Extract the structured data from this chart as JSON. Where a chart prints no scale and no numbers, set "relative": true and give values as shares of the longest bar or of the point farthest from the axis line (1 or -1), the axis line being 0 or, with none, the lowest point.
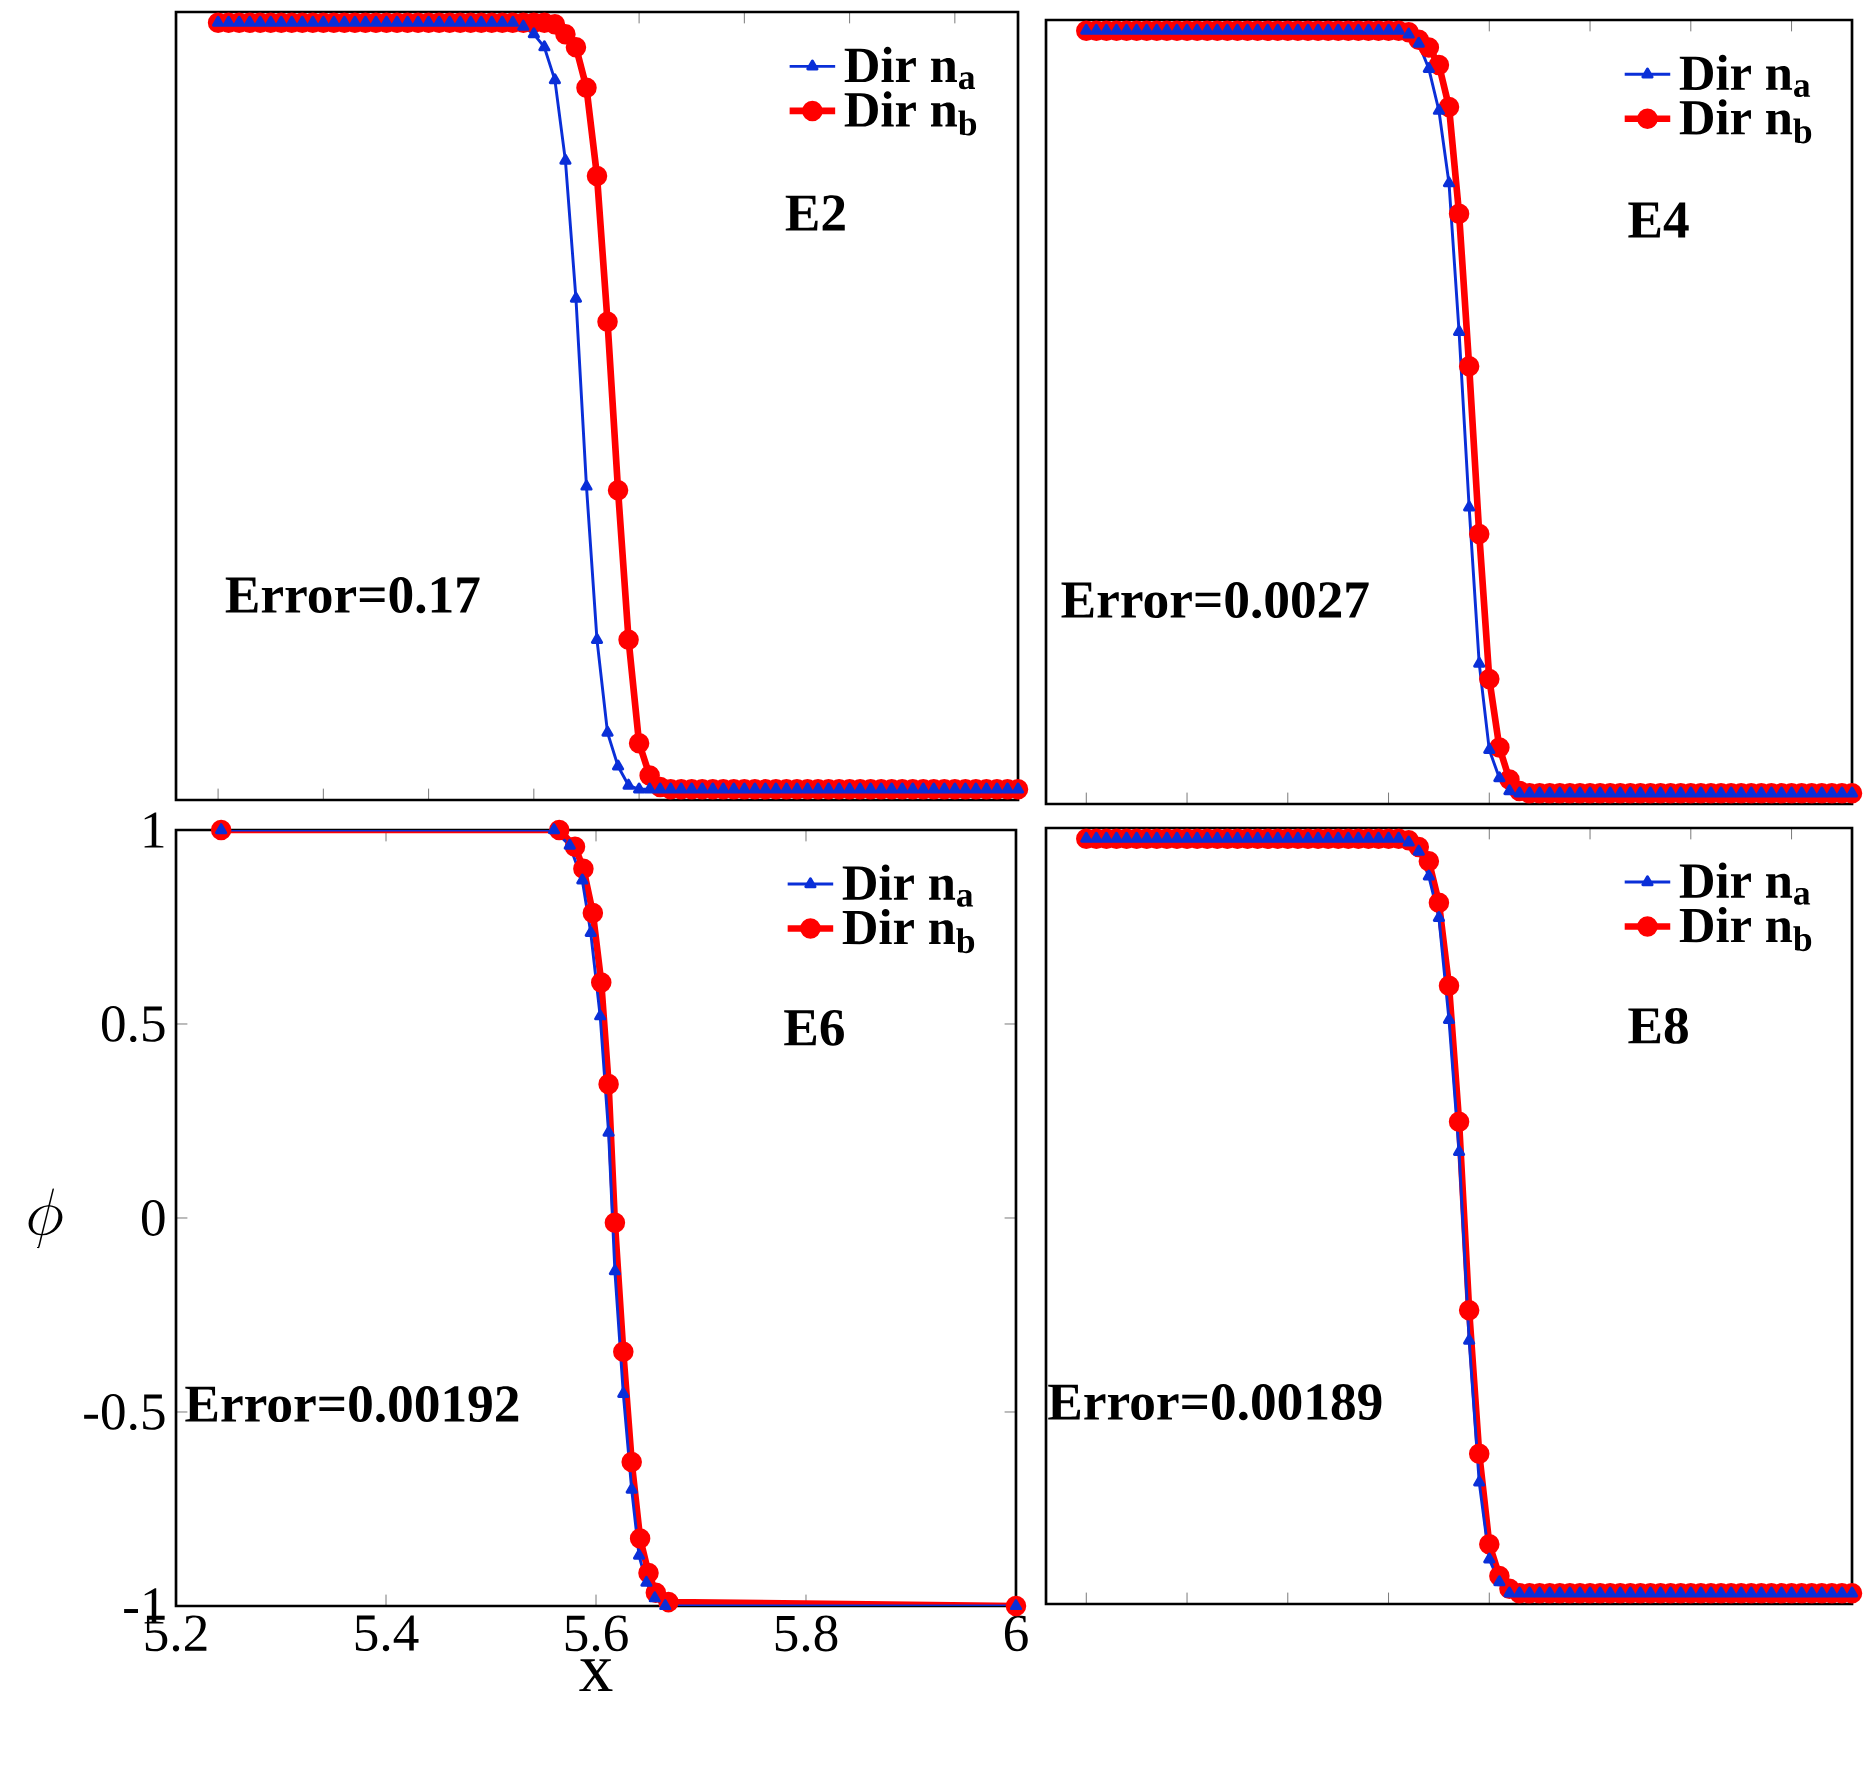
{
  "chart_data": [
    {
      "type": "line",
      "annotations": [
        "E2",
        "Error=0.17"
      ],
      "relative": true,
      "legend": "top right",
      "categories": [
        null,
        null,
        null,
        null,
        null,
        null,
        null,
        null,
        null,
        null,
        null,
        null,
        null,
        null,
        null,
        null,
        null,
        null,
        null,
        null,
        null,
        null,
        null,
        null,
        null,
        null,
        null,
        null,
        null,
        null,
        null,
        null,
        null,
        null,
        null,
        null,
        null,
        null,
        null,
        null,
        null,
        null,
        null,
        null,
        null,
        null,
        null,
        null,
        null,
        null,
        null,
        null,
        null,
        null,
        null,
        null,
        null,
        null,
        null,
        null,
        null,
        null,
        null,
        null,
        null,
        null,
        null,
        null,
        null,
        null,
        null,
        null,
        null,
        null,
        null,
        null,
        null
      ],
      "series": [
        {
          "name": "Dir **n**$_{a}$",
          "color": "#0a2fd8",
          "marker": "triangle",
          "values": [
            1,
            1,
            1,
            1,
            1,
            1,
            1,
            1,
            1,
            1,
            1,
            1,
            1,
            1,
            1,
            1,
            1,
            1,
            1,
            1,
            1,
            1,
            1,
            1,
            1,
            1,
            1,
            1,
            1,
            0.995,
            0.985,
            0.968,
            0.925,
            0.82,
            0.64,
            0.395,
            0.195,
            0.074,
            0.03,
            0.005,
            0,
            0,
            0,
            0,
            0,
            0,
            0,
            0,
            0,
            0,
            0,
            0,
            0,
            0,
            0,
            0,
            0,
            0,
            0,
            0,
            0,
            0,
            0,
            0,
            0,
            0,
            0,
            0,
            0,
            0,
            0,
            0,
            0,
            0,
            0,
            0,
            0
          ]
        },
        {
          "name": "Dir **n**$_{b}$",
          "color": "#ff0000",
          "marker": "circle",
          "values": [
            1,
            1,
            1,
            1,
            1,
            1,
            1,
            1,
            1,
            1,
            1,
            1,
            1,
            1,
            1,
            1,
            1,
            1,
            1,
            1,
            1,
            1,
            1,
            1,
            1,
            1,
            1,
            1,
            1,
            1,
            1,
            1,
            0.998,
            0.985,
            0.968,
            0.915,
            0.8,
            0.61,
            0.39,
            0.195,
            0.06,
            0.018,
            0.003,
            0,
            0,
            0,
            0,
            0,
            0,
            0,
            0,
            0,
            0,
            0,
            0,
            0,
            0,
            0,
            0,
            0,
            0,
            0,
            0,
            0,
            0,
            0,
            0,
            0,
            0,
            0,
            0,
            0,
            0,
            0,
            0,
            0,
            0
          ]
        }
      ]
    },
    {
      "type": "line",
      "annotations": [
        "E4",
        "Error=0.0027"
      ],
      "relative": true,
      "legend": "top right",
      "categories": [
        null,
        null,
        null,
        null,
        null,
        null,
        null,
        null,
        null,
        null,
        null,
        null,
        null,
        null,
        null,
        null,
        null,
        null,
        null,
        null,
        null,
        null,
        null,
        null,
        null,
        null,
        null,
        null,
        null,
        null,
        null,
        null,
        null,
        null,
        null,
        null,
        null,
        null,
        null,
        null,
        null,
        null,
        null,
        null,
        null,
        null,
        null,
        null,
        null,
        null,
        null,
        null,
        null,
        null,
        null,
        null,
        null,
        null,
        null,
        null,
        null,
        null,
        null,
        null,
        null,
        null,
        null,
        null,
        null,
        null,
        null,
        null,
        null,
        null,
        null,
        null,
        null
      ],
      "series": [
        {
          "name": "Dir **n**$_{a}$",
          "color": "#0a2fd8",
          "marker": "triangle",
          "values": [
            1,
            1,
            1,
            1,
            1,
            1,
            1,
            1,
            1,
            1,
            1,
            1,
            1,
            1,
            1,
            1,
            1,
            1,
            1,
            1,
            1,
            1,
            1,
            1,
            1,
            1,
            1,
            1,
            1,
            1,
            1,
            1,
            0.995,
            0.983,
            0.95,
            0.895,
            0.8,
            0.605,
            0.375,
            0.17,
            0.057,
            0.02,
            0.003,
            0,
            0,
            0,
            0,
            0,
            0,
            0,
            0,
            0,
            0,
            0,
            0,
            0,
            0,
            0,
            0,
            0,
            0,
            0,
            0,
            0,
            0,
            0,
            0,
            0,
            0,
            0,
            0,
            0,
            0,
            0,
            0,
            0,
            0
          ]
        },
        {
          "name": "Dir **n**$_{b}$",
          "color": "#ff0000",
          "marker": "circle",
          "values": [
            1,
            1,
            1,
            1,
            1,
            1,
            1,
            1,
            1,
            1,
            1,
            1,
            1,
            1,
            1,
            1,
            1,
            1,
            1,
            1,
            1,
            1,
            1,
            1,
            1,
            1,
            1,
            1,
            1,
            1,
            1,
            1,
            0.998,
            0.988,
            0.978,
            0.955,
            0.9,
            0.76,
            0.56,
            0.34,
            0.15,
            0.06,
            0.018,
            0.003,
            0,
            0,
            0,
            0,
            0,
            0,
            0,
            0,
            0,
            0,
            0,
            0,
            0,
            0,
            0,
            0,
            0,
            0,
            0,
            0,
            0,
            0,
            0,
            0,
            0,
            0,
            0,
            0,
            0,
            0,
            0,
            0,
            0
          ]
        }
      ]
    },
    {
      "type": "line",
      "annotations": [
        "E6",
        "Error=0.00192"
      ],
      "xlabel": "x",
      "ylabel": "\\phi",
      "xlim": [
        5.2,
        6.0
      ],
      "ylim": [
        -1.0,
        1.0
      ],
      "xticks": [
        5.2,
        5.4,
        5.6,
        5.8,
        6
      ],
      "yticks": [
        -1,
        -0.5,
        0,
        0.5,
        1
      ],
      "legend": "top right",
      "series": [
        {
          "name": "Dir **n**$_{a}$",
          "color": "#0a2fd8",
          "marker": "triangle",
          "x": [
            5.243,
            5.56,
            5.575,
            5.587,
            5.595,
            5.604,
            5.612,
            5.618,
            5.626,
            5.634,
            5.641,
            5.648,
            5.656,
            5.666,
            6.0
          ],
          "values": [
            1,
            1,
            0.96,
            0.87,
            0.735,
            0.52,
            0.22,
            -0.137,
            -0.453,
            -0.7,
            -0.87,
            -0.94,
            -0.98,
            -1,
            -1
          ]
        },
        {
          "name": "Dir **n**$_{b}$",
          "color": "#ff0000",
          "marker": "circle",
          "x": [
            5.243,
            5.565,
            5.58,
            5.588,
            5.597,
            5.605,
            5.612,
            5.618,
            5.626,
            5.634,
            5.642,
            5.65,
            5.657,
            5.669,
            6.0
          ],
          "values": [
            1,
            1,
            0.957,
            0.9,
            0.786,
            0.607,
            0.345,
            -0.012,
            -0.345,
            -0.629,
            -0.826,
            -0.915,
            -0.966,
            -0.99,
            -1
          ]
        }
      ]
    },
    {
      "type": "line",
      "annotations": [
        "E8",
        "Error=0.00189"
      ],
      "relative": true,
      "legend": "top right",
      "categories": [
        null,
        null,
        null,
        null,
        null,
        null,
        null,
        null,
        null,
        null,
        null,
        null,
        null,
        null,
        null,
        null,
        null,
        null,
        null,
        null,
        null,
        null,
        null,
        null,
        null,
        null,
        null,
        null,
        null,
        null,
        null,
        null,
        null,
        null,
        null,
        null,
        null,
        null,
        null,
        null,
        null,
        null,
        null,
        null,
        null,
        null,
        null,
        null,
        null,
        null,
        null,
        null,
        null,
        null,
        null,
        null,
        null,
        null,
        null,
        null,
        null,
        null,
        null,
        null,
        null,
        null,
        null,
        null,
        null,
        null,
        null,
        null,
        null,
        null,
        null,
        null,
        null
      ],
      "series": [
        {
          "name": "Dir **n**$_{a}$",
          "color": "#0a2fd8",
          "marker": "triangle",
          "values": [
            1,
            1,
            1,
            1,
            1,
            1,
            1,
            1,
            1,
            1,
            1,
            1,
            1,
            1,
            1,
            1,
            1,
            1,
            1,
            1,
            1,
            1,
            1,
            1,
            1,
            1,
            1,
            1,
            1,
            1,
            1,
            1,
            0.995,
            0.983,
            0.95,
            0.895,
            0.76,
            0.585,
            0.335,
            0.147,
            0.045,
            0.015,
            0,
            0,
            0,
            0,
            0,
            0,
            0,
            0,
            0,
            0,
            0,
            0,
            0,
            0,
            0,
            0,
            0,
            0,
            0,
            0,
            0,
            0,
            0,
            0,
            0,
            0,
            0,
            0,
            0,
            0,
            0,
            0,
            0,
            0,
            0
          ]
        },
        {
          "name": "Dir **n**$_{b}$",
          "color": "#ff0000",
          "marker": "circle",
          "values": [
            1,
            1,
            1,
            1,
            1,
            1,
            1,
            1,
            1,
            1,
            1,
            1,
            1,
            1,
            1,
            1,
            1,
            1,
            1,
            1,
            1,
            1,
            1,
            1,
            1,
            1,
            1,
            1,
            1,
            1,
            1,
            1,
            0.998,
            0.989,
            0.97,
            0.915,
            0.805,
            0.625,
            0.375,
            0.185,
            0.065,
            0.023,
            0.006,
            0,
            0,
            0,
            0,
            0,
            0,
            0,
            0,
            0,
            0,
            0,
            0,
            0,
            0,
            0,
            0,
            0,
            0,
            0,
            0,
            0,
            0,
            0,
            0,
            0,
            0,
            0,
            0,
            0,
            0,
            0,
            0,
            0,
            0
          ]
        }
      ]
    }
  ]
}
